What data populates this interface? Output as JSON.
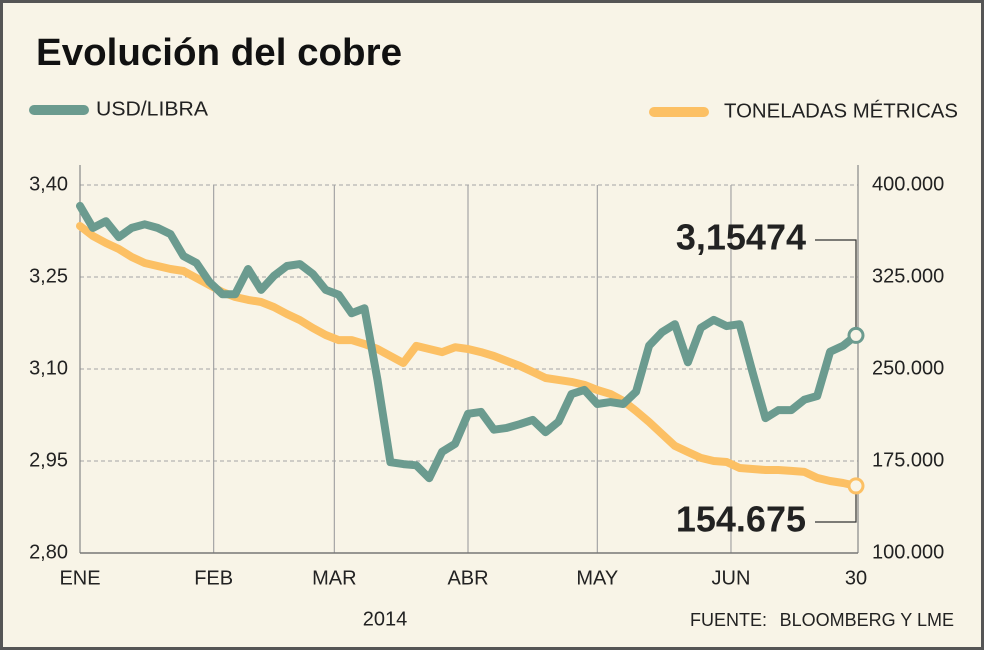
{
  "chart_data": {
    "type": "line",
    "title": "Evolución del cobre",
    "xlabel": "2014",
    "source": [
      "FUENTE:",
      "BLOOMBERG Y LME"
    ],
    "legend": "top",
    "grid": true,
    "x": [
      1,
      4,
      7,
      10,
      13,
      16,
      19,
      22,
      25,
      28,
      31,
      34,
      37,
      40,
      43,
      46,
      49,
      52,
      55,
      58,
      61,
      64,
      67,
      70,
      73,
      76,
      79,
      82,
      85,
      88,
      91,
      94,
      97,
      100,
      103,
      106,
      109,
      112,
      115,
      118,
      121,
      124,
      127,
      130,
      133,
      136,
      139,
      142,
      145,
      148,
      151,
      154,
      157,
      160,
      163,
      166,
      169,
      172,
      175,
      178,
      181
    ],
    "xlim": [
      1,
      181
    ],
    "xticks": [
      {
        "value": 1,
        "label": "ENE"
      },
      {
        "value": 32,
        "label": "FEB"
      },
      {
        "value": 60,
        "label": "MAR"
      },
      {
        "value": 91,
        "label": "ABR"
      },
      {
        "value": 121,
        "label": "MAY"
      },
      {
        "value": 152,
        "label": "JUN"
      },
      {
        "value": 181,
        "label": "30"
      }
    ],
    "ylim": [
      2.8,
      3.4
    ],
    "yticks": [
      {
        "value": 2.8,
        "label": "2,80"
      },
      {
        "value": 2.95,
        "label": "2,95"
      },
      {
        "value": 3.1,
        "label": "3,10"
      },
      {
        "value": 3.25,
        "label": "3,25"
      },
      {
        "value": 3.4,
        "label": "3,40"
      }
    ],
    "y2lim": [
      100000,
      400000
    ],
    "y2ticks": [
      {
        "value": 100000,
        "label": "100.000"
      },
      {
        "value": 175000,
        "label": "175.000"
      },
      {
        "value": 250000,
        "label": "250.000"
      },
      {
        "value": 325000,
        "label": "325.000"
      },
      {
        "value": 400000,
        "label": "400.000"
      }
    ],
    "series": [
      {
        "name": "USD/LIBRA",
        "color": "#6b9b8f",
        "values": [
          3.366,
          3.33,
          3.341,
          3.315,
          3.33,
          3.336,
          3.33,
          3.32,
          3.284,
          3.273,
          3.242,
          3.222,
          3.222,
          3.263,
          3.229,
          3.252,
          3.268,
          3.271,
          3.255,
          3.229,
          3.221,
          3.191,
          3.199,
          3.082,
          2.948,
          2.945,
          2.943,
          2.922,
          2.965,
          2.978,
          3.027,
          3.03,
          3.001,
          3.004,
          3.01,
          3.017,
          2.997,
          3.014,
          3.059,
          3.066,
          3.043,
          3.046,
          3.043,
          3.063,
          3.138,
          3.16,
          3.173,
          3.111,
          3.167,
          3.18,
          3.17,
          3.173,
          3.095,
          3.02,
          3.033,
          3.033,
          3.05,
          3.056,
          3.128,
          3.138,
          3.15474
        ]
      },
      {
        "name": "TONELADAS MÉTRICAS",
        "color": "#fcc064",
        "axis": "y2",
        "values": [
          366600,
          358400,
          352700,
          347800,
          341300,
          336400,
          334000,
          331500,
          329900,
          324200,
          318500,
          312800,
          308700,
          306300,
          304600,
          300500,
          294800,
          289900,
          283400,
          277700,
          273600,
          273600,
          270400,
          266300,
          260600,
          254900,
          268800,
          266300,
          263800,
          267800,
          266300,
          263800,
          260600,
          256500,
          252500,
          247600,
          242700,
          241100,
          239500,
          237000,
          232900,
          229700,
          224000,
          215800,
          206800,
          197000,
          187300,
          182300,
          177500,
          175000,
          174200,
          169300,
          168500,
          167700,
          167700,
          166900,
          166100,
          161200,
          158700,
          157100,
          154675
        ]
      }
    ],
    "annotations": [
      "3,15474",
      "154.675"
    ],
    "annotation_color": "#f26d3b"
  }
}
